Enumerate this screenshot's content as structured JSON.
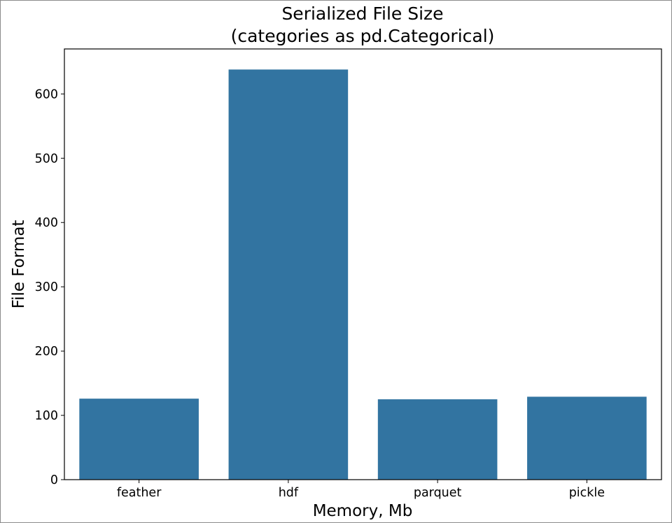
{
  "chart_data": {
    "type": "bar",
    "title_lines": [
      "Serialized File Size",
      "(categories as pd.Categorical)"
    ],
    "xlabel": "Memory, Mb",
    "ylabel": "File Format",
    "categories": [
      "feather",
      "hdf",
      "parquet",
      "pickle"
    ],
    "values": [
      126,
      638,
      125,
      129
    ],
    "ylim": [
      0,
      670
    ],
    "yticks": [
      0,
      100,
      200,
      300,
      400,
      500,
      600
    ],
    "grid": false,
    "legend": "none",
    "bar_color": "#3274a1"
  }
}
